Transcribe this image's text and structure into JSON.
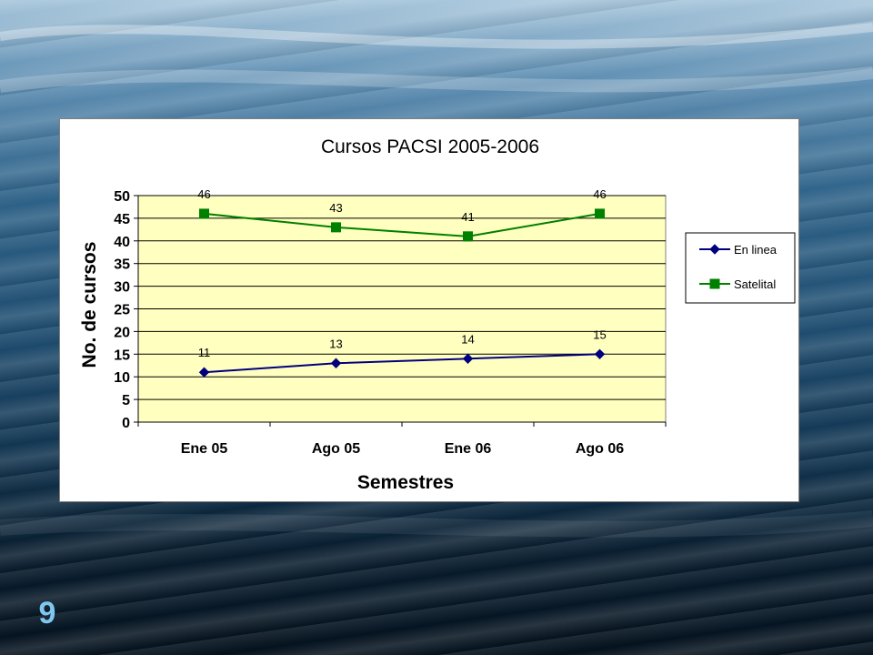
{
  "slide": {
    "number": "9"
  },
  "chart_data": {
    "type": "line",
    "title": "Cursos PACSI 2005-2006",
    "xlabel": "Semestres",
    "ylabel": "No. de cursos",
    "categories": [
      "Ene 05",
      "Ago 05",
      "Ene 06",
      "Ago 06"
    ],
    "ylim": [
      0,
      50
    ],
    "yticks": [
      0,
      5,
      10,
      15,
      20,
      25,
      30,
      35,
      40,
      45,
      50
    ],
    "grid": true,
    "legend_position": "right",
    "plot_background": "#ffffc0",
    "series": [
      {
        "name": "En linea",
        "values": [
          11,
          13,
          14,
          15
        ],
        "color": "#00007f",
        "marker": "diamond"
      },
      {
        "name": "Satelital",
        "values": [
          46,
          43,
          41,
          46
        ],
        "color": "#008000",
        "marker": "square"
      }
    ]
  }
}
